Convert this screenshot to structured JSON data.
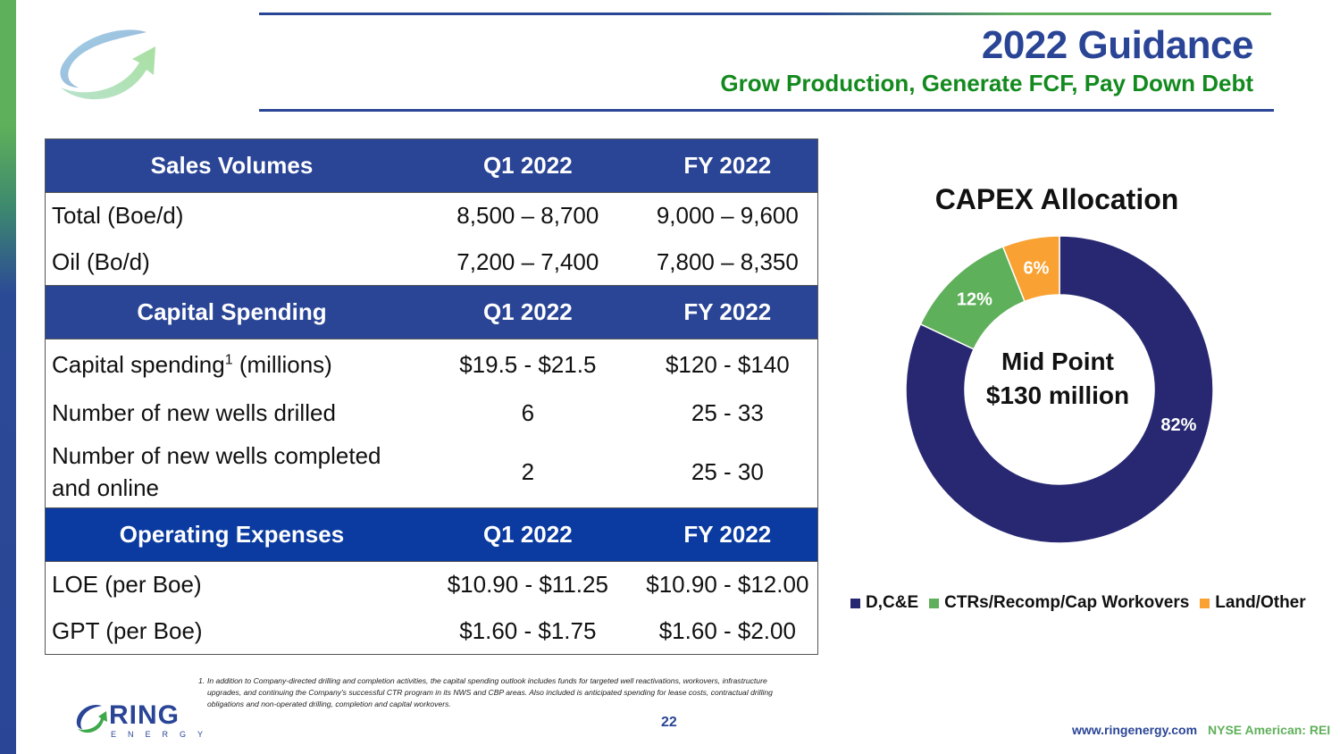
{
  "header": {
    "title": "2022 Guidance",
    "subtitle": "Grow Production, Generate FCF, Pay Down Debt"
  },
  "table": {
    "sections": [
      {
        "header": [
          "Sales Volumes",
          "Q1 2022",
          "FY 2022"
        ],
        "rows": [
          {
            "label": "Total (Boe/d)",
            "q1": "8,500 – 8,700",
            "fy": "9,000 – 9,600"
          },
          {
            "label": "Oil (Bo/d)",
            "q1": "7,200 – 7,400",
            "fy": "7,800 – 8,350"
          }
        ]
      },
      {
        "header": [
          "Capital Spending",
          "Q1 2022",
          "FY 2022"
        ],
        "rows": [
          {
            "label": "Capital spending",
            "label_sup": "1",
            "label_suffix": " (millions)",
            "q1": "$19.5 - $21.5",
            "fy": "$120 - $140"
          },
          {
            "label": "Number of new wells drilled",
            "q1": "6",
            "fy": "25 - 33"
          },
          {
            "label": "Number of new wells completed",
            "label_line2": "and online",
            "q1": "2",
            "fy": "25 - 30"
          }
        ]
      },
      {
        "header": [
          "Operating Expenses",
          "Q1 2022",
          "FY 2022"
        ],
        "rows": [
          {
            "label": "LOE (per Boe)",
            "q1": "$10.90 - $11.25",
            "fy": "$10.90 - $12.00"
          },
          {
            "label": "GPT (per Boe)",
            "q1": "$1.60 - $1.75",
            "fy": "$1.60 - $2.00"
          }
        ]
      }
    ]
  },
  "footnote": {
    "number": "1.",
    "text": "In addition to Company-directed drilling and completion activities, the capital spending outlook includes funds for targeted well reactivations, workovers, infrastructure upgrades, and continuing the Company's successful CTR program in its NWS and CBP areas.  Also included is anticipated spending for lease costs, contractual drilling obligations and non-operated drilling, completion and capital workovers."
  },
  "footer": {
    "page_number": "22",
    "logo_word": "RING",
    "logo_sub": "ENERGY",
    "website": "www.ringenergy.com",
    "ticker": "NYSE American: REI"
  },
  "colors": {
    "brand_blue": "#2a4596",
    "brand_green": "#5fb05a",
    "subtitle_green": "#138a1e"
  },
  "chart_data": {
    "type": "pie",
    "subtype": "donut",
    "title": "CAPEX Allocation",
    "center_label": [
      "Mid Point",
      "$130 million"
    ],
    "categories": [
      "D,C&E",
      "CTRs/Recomp/Cap Workovers",
      "Land/Other"
    ],
    "values": [
      82,
      12,
      6
    ],
    "unit": "%",
    "data_labels": [
      "82%",
      "12%",
      "6%"
    ],
    "colors": [
      "#282872",
      "#5fb05a",
      "#f9a233"
    ],
    "start": "12 o'clock, clockwise",
    "legend_position": "bottom"
  }
}
